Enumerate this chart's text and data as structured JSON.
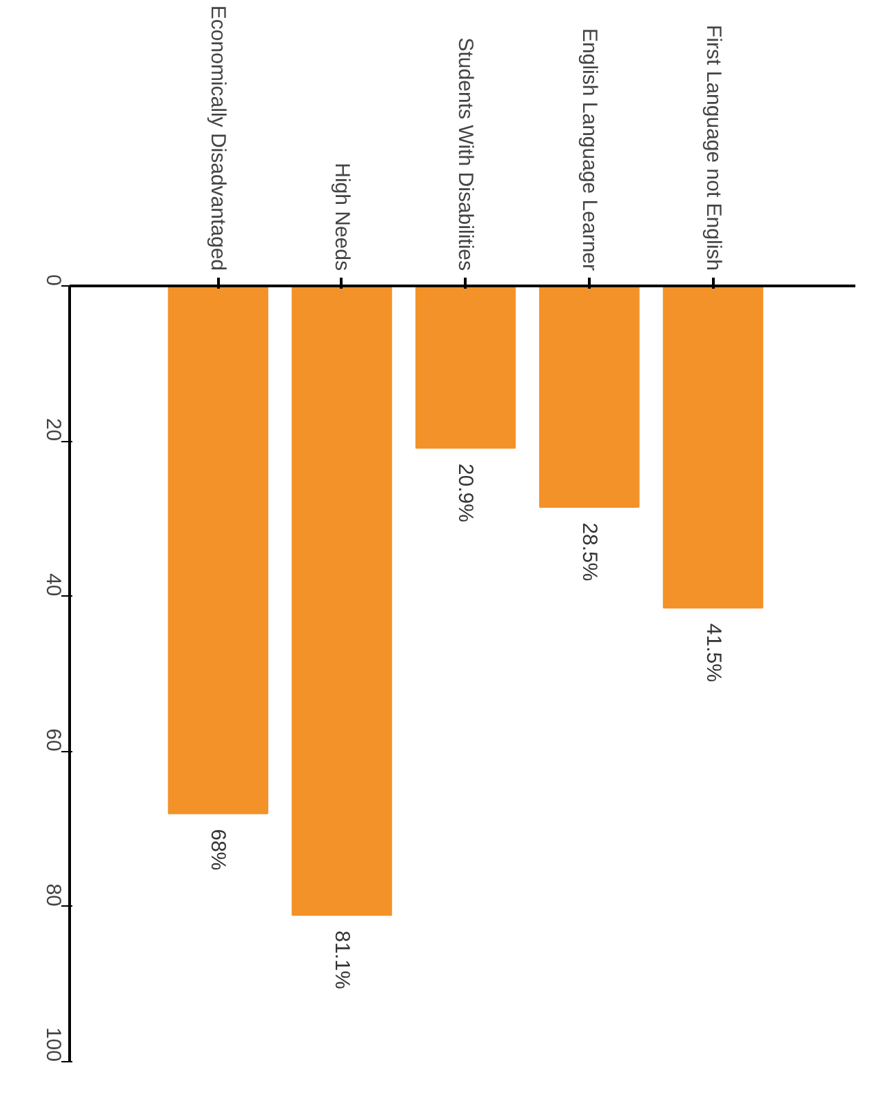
{
  "chart_data": {
    "type": "bar",
    "categories": [
      "Economically Disadvantaged",
      "High Needs",
      "Students With Disabilities",
      "English Language Learner",
      "First Language not English"
    ],
    "values": [
      68,
      81.1,
      20.9,
      28.5,
      41.5
    ],
    "value_labels": [
      "68%",
      "81.1%",
      "20.9%",
      "28.5%",
      "41.5%"
    ],
    "color": "#f39229",
    "ylim": [
      100,
      0
    ],
    "yticks": [
      0,
      20,
      40,
      60,
      80,
      100
    ],
    "grid": false
  }
}
